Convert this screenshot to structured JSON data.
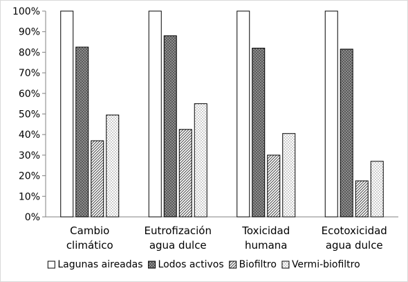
{
  "chart_data": {
    "type": "bar",
    "categories": [
      [
        "Cambio",
        "climático"
      ],
      [
        "Eutrofización",
        "agua dulce"
      ],
      [
        "Toxicidad",
        "humana"
      ],
      [
        "Ecotoxicidad",
        "agua dulce"
      ]
    ],
    "series": [
      {
        "name": "Lagunas aireadas",
        "values": [
          100,
          100,
          100,
          100
        ],
        "pattern": "white"
      },
      {
        "name": "Lodos activos",
        "values": [
          82.5,
          88,
          82,
          81.5
        ],
        "pattern": "dots-dark"
      },
      {
        "name": "Biofiltro",
        "values": [
          37,
          42.5,
          30,
          17.5
        ],
        "pattern": "diagonal"
      },
      {
        "name": "Vermi-biofiltro",
        "values": [
          49.5,
          55,
          40.5,
          27
        ],
        "pattern": "dots-light"
      }
    ],
    "y_ticks": [
      "0%",
      "10%",
      "20%",
      "30%",
      "40%",
      "50%",
      "60%",
      "70%",
      "80%",
      "90%",
      "100%"
    ],
    "ylim": [
      0,
      100
    ],
    "legend_position": "bottom",
    "grid": false,
    "title": "",
    "xlabel": "",
    "ylabel": ""
  }
}
